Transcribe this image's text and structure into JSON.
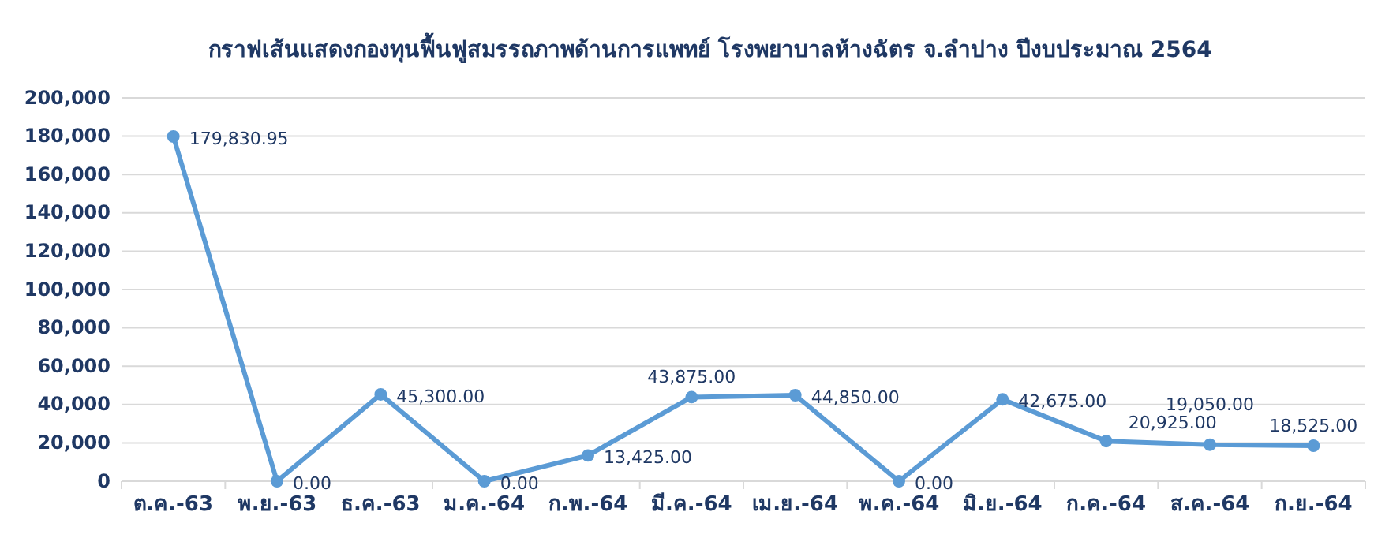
{
  "chart_data": {
    "type": "line",
    "title": "กราฟเส้นแสดงกองทุนฟื้นฟูสมรรถภาพด้านการแพทย์ โรงพยาบาลห้างฉัตร จ.ลำปาง ปีงบประมาณ 2564",
    "categories": [
      "ต.ค.-63",
      "พ.ย.-63",
      "ธ.ค.-63",
      "ม.ค.-64",
      "ก.พ.-64",
      "มี.ค.-64",
      "เม.ย.-64",
      "พ.ค.-64",
      "มิ.ย.-64",
      "ก.ค.-64",
      "ส.ค.-64",
      "ก.ย.-64"
    ],
    "series": [
      {
        "color": "#5b9bd5",
        "values": [
          179830.95,
          0,
          45300,
          0,
          13425,
          43875,
          44850,
          0,
          42675,
          20925,
          19050,
          18525
        ],
        "value_labels": [
          "179,830.95",
          "0.00",
          "45,300.00",
          "0.00",
          "13,425.00",
          "43,875.00",
          "44,850.00",
          "0.00",
          "42,675.00",
          "20,925.00",
          "19,050.00",
          "18,525.00"
        ]
      }
    ],
    "ylim": [
      0,
      200000
    ],
    "yticks": [
      {
        "value": 0,
        "label": "0"
      },
      {
        "value": 20000,
        "label": "20,000"
      },
      {
        "value": 40000,
        "label": "40,000"
      },
      {
        "value": 60000,
        "label": "60,000"
      },
      {
        "value": 80000,
        "label": "80,000"
      },
      {
        "value": 100000,
        "label": "100,000"
      },
      {
        "value": 120000,
        "label": "120,000"
      },
      {
        "value": 140000,
        "label": "140,000"
      },
      {
        "value": 160000,
        "label": "160,000"
      },
      {
        "value": 180000,
        "label": "180,000"
      },
      {
        "value": 200000,
        "label": "200,000"
      }
    ],
    "grid": "y",
    "marker": "circle",
    "line_style": "solid"
  }
}
